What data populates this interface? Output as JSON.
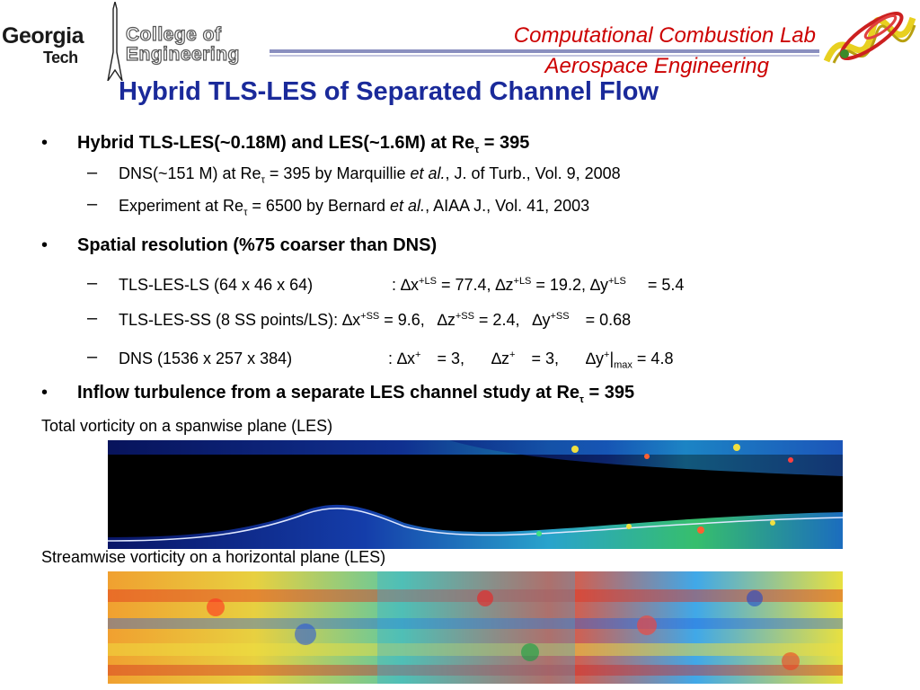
{
  "logo": {
    "gt_line1": "Georgia",
    "gt_line2": "Tech",
    "coe_line1": "College of",
    "coe_line2": "Engineering"
  },
  "header": {
    "lab": "Computational Combustion Lab",
    "dept": "Aerospace Engineering"
  },
  "title": "Hybrid TLS-LES of Separated Channel Flow",
  "bullet_glyph": "•",
  "dash_glyph": "–",
  "tau": "τ",
  "delta": "∆",
  "b1": {
    "text": "Hybrid TLS-LES(~0.18M) and LES(~1.6M) at Re",
    "tail": " = 395"
  },
  "b1s1": {
    "a": "DNS(~151 M) at Re",
    "b": " = 395 by Marquillie ",
    "c": "et al.",
    "d": ", J. of Turb., Vol. 9, 2008"
  },
  "b1s2": {
    "a": "Experiment at Re",
    "b": " = 6500 by Bernard ",
    "c": "et al.",
    "d": ", AIAA J., Vol. 41, 2003"
  },
  "b2": {
    "text": "Spatial resolution (%75 coarser than DNS)"
  },
  "b2s1": {
    "label": "TLS-LES-LS (64 x 46 x 64)",
    "colon": ":",
    "x": "x",
    "sx": "+LS",
    "vx": " = 77.4, ",
    "z": "z",
    "sz": "+LS",
    "vz": " = 19.2, ",
    "y": "y",
    "sy": "+LS",
    "vy": "= 5.4"
  },
  "b2s2": {
    "label": "TLS-LES-SS (8 SS points/LS):",
    "x": "x",
    "sx": "+SS",
    "vx": " = 9.6,",
    "z": "z",
    "sz": "+SS",
    "vz": " = 2.4,",
    "y": "y",
    "sy": "+SS",
    "vy": "= 0.68"
  },
  "b2s3": {
    "label": "DNS (1536 x 257 x 384)",
    "colon": ":",
    "x": "x",
    "sx": "+",
    "vx": "= 3,",
    "z": "z",
    "sz": "+",
    "vz": "= 3,",
    "y": "y",
    "sy": "+",
    "bar": "|",
    "sub": "max",
    "vy": " = 4.8"
  },
  "b3": {
    "text": "Inflow turbulence from a separate LES channel study at  Re",
    "tail": " = 395"
  },
  "caption1": "Total vorticity on a spanwise plane (LES)",
  "caption2": "Streamwise vorticity on a horizontal plane (LES)",
  "colors": {
    "title": "#1a2a9a",
    "header_text": "#cc0000",
    "rule": "#8a8fbf"
  },
  "icons": {
    "corner_graphic": "helix-flame-icon",
    "logo_divider": "gt-spire-icon"
  }
}
